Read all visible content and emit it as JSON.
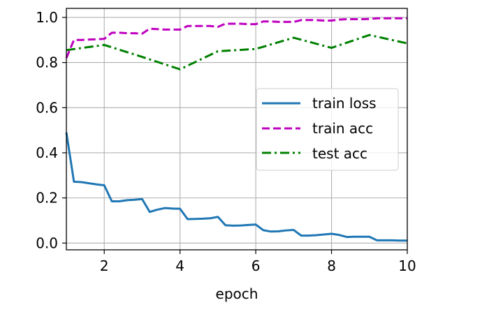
{
  "chart_data": {
    "type": "line",
    "title": "",
    "xlabel": "epoch",
    "ylabel": "",
    "xlim": [
      1,
      10
    ],
    "ylim": [
      -0.03,
      1.04
    ],
    "xticks": [
      2,
      4,
      6,
      8,
      10
    ],
    "yticks": [
      0.0,
      0.2,
      0.4,
      0.6,
      0.8,
      1.0
    ],
    "xtick_labels": [
      "2",
      "4",
      "6",
      "8",
      "10"
    ],
    "ytick_labels": [
      "0.0",
      "0.2",
      "0.4",
      "0.6",
      "0.8",
      "1.0"
    ],
    "grid": true,
    "legend_position": "center-right",
    "series": [
      {
        "name": "train loss",
        "color": "#1f77b4",
        "dash": "solid",
        "x": [
          1.0,
          1.2,
          1.4,
          1.6,
          1.8,
          2.0,
          2.2,
          2.4,
          2.6,
          2.8,
          3.0,
          3.2,
          3.4,
          3.6,
          3.8,
          4.0,
          4.2,
          4.4,
          4.6,
          4.8,
          5.0,
          5.2,
          5.4,
          5.6,
          5.8,
          6.0,
          6.2,
          6.4,
          6.6,
          6.8,
          7.0,
          7.2,
          7.4,
          7.6,
          7.8,
          8.0,
          8.2,
          8.4,
          8.6,
          8.8,
          9.0,
          9.2,
          9.4,
          9.6,
          9.8,
          10.0
        ],
        "y": [
          0.49,
          0.272,
          0.27,
          0.265,
          0.26,
          0.256,
          0.185,
          0.185,
          0.19,
          0.192,
          0.195,
          0.138,
          0.148,
          0.155,
          0.153,
          0.152,
          0.106,
          0.107,
          0.108,
          0.11,
          0.116,
          0.079,
          0.077,
          0.078,
          0.08,
          0.082,
          0.057,
          0.051,
          0.052,
          0.056,
          0.058,
          0.033,
          0.033,
          0.035,
          0.038,
          0.041,
          0.036,
          0.027,
          0.028,
          0.028,
          0.028,
          0.012,
          0.012,
          0.012,
          0.011,
          0.011
        ]
      },
      {
        "name": "train acc",
        "color": "#bf00bf",
        "dash": "dashed",
        "x": [
          1.0,
          1.2,
          1.4,
          1.6,
          1.8,
          2.0,
          2.2,
          2.4,
          2.6,
          2.8,
          3.0,
          3.2,
          3.4,
          3.6,
          3.8,
          4.0,
          4.2,
          4.4,
          4.6,
          4.8,
          5.0,
          5.2,
          5.4,
          5.6,
          5.8,
          6.0,
          6.2,
          6.4,
          6.6,
          6.8,
          7.0,
          7.2,
          7.4,
          7.6,
          7.8,
          8.0,
          8.2,
          8.4,
          8.6,
          8.8,
          9.0,
          9.2,
          9.4,
          9.6,
          9.8,
          10.0
        ],
        "y": [
          0.82,
          0.9,
          0.9,
          0.902,
          0.903,
          0.905,
          0.932,
          0.932,
          0.93,
          0.93,
          0.928,
          0.95,
          0.948,
          0.946,
          0.946,
          0.946,
          0.962,
          0.962,
          0.962,
          0.962,
          0.958,
          0.972,
          0.972,
          0.972,
          0.97,
          0.97,
          0.982,
          0.982,
          0.98,
          0.98,
          0.98,
          0.988,
          0.988,
          0.988,
          0.986,
          0.986,
          0.99,
          0.992,
          0.992,
          0.992,
          0.993,
          0.996,
          0.996,
          0.996,
          0.996,
          0.996
        ]
      },
      {
        "name": "test acc",
        "color": "#008000",
        "dash": "dashdot",
        "x": [
          1,
          2,
          3,
          4,
          5,
          6,
          7,
          8,
          9,
          10
        ],
        "y": [
          0.855,
          0.878,
          0.825,
          0.77,
          0.85,
          0.86,
          0.91,
          0.865,
          0.922,
          0.885
        ]
      }
    ]
  }
}
